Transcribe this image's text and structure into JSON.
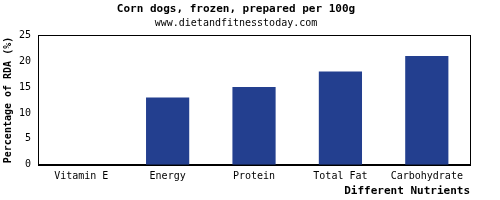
{
  "chart_data": {
    "type": "bar",
    "title": "Corn dogs, frozen, prepared per 100g",
    "subtitle": "www.dietandfitnesstoday.com",
    "x_label": "Different Nutrients",
    "y_label": "Percentage of RDA (%)",
    "categories": [
      "Vitamin E",
      "Energy",
      "Protein",
      "Total Fat",
      "Carbohydrate"
    ],
    "values": [
      0,
      13,
      15,
      18,
      21
    ],
    "color": "#233f8f",
    "ylim": [
      0,
      25
    ],
    "yticks": [
      0,
      5,
      10,
      15,
      20,
      25
    ],
    "grid": false
  }
}
